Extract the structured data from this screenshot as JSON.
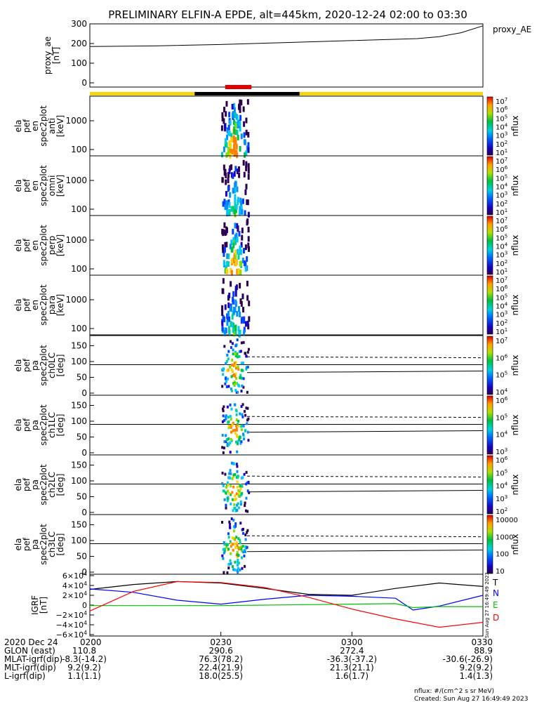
{
  "title": "PRELIMINARY ELFIN-A EPDE, alt=445km, 2020-12-24 02:00 to 03:30",
  "footer": {
    "units": "nflux: #/(cm^2 s sr MeV)",
    "created": "Created: Sun Aug 27 16:49:49 2023",
    "side_stamp": "Sun Aug 27 16:49:49 2023"
  },
  "time_axis": {
    "ticks": [
      "0200",
      "0230",
      "0300",
      "0330"
    ],
    "rows": [
      {
        "label": "2020 Dec 24",
        "values": [
          "0200",
          "0230",
          "0300",
          "0330"
        ]
      },
      {
        "label": "GLON (east)",
        "values": [
          "110.8",
          "290.6",
          "272.4",
          "88.9"
        ]
      },
      {
        "label": "MLAT-igrf(dip)",
        "values": [
          "-8.3(-14.2)",
          "76.3(78.2)",
          "-36.3(-37.2)",
          "-30.6(-26.9)"
        ]
      },
      {
        "label": "MLT-igrf(dip)",
        "values": [
          "9.2(9.2)",
          "22.4(21.9)",
          "21.3(21.1)",
          "9.2(9.2)"
        ]
      },
      {
        "label": "L-igrf(dip)",
        "values": [
          "1.1(1.1)",
          "18.0(25.5)",
          "1.6(1.7)",
          "1.4(1.3)"
        ]
      }
    ]
  },
  "colors": {
    "orbit_yellow": "#f4d40a",
    "orbit_black": "#000000",
    "science_red": "#e00000",
    "igrf_T": "#000000",
    "igrf_N": "#0000ff",
    "igrf_E": "#00c000",
    "igrf_D": "#ff0000"
  },
  "chart_data": [
    {
      "type": "line",
      "name": "proxy_ae_panel",
      "ylabel": [
        "proxy_ae",
        "[nT]"
      ],
      "legend": [
        "proxy_AE"
      ],
      "ylim": [
        0,
        300
      ],
      "yticks": [
        "300",
        "200",
        "100",
        "0"
      ],
      "series": [
        {
          "name": "proxy_AE",
          "x": [
            "0200",
            "0215",
            "0230",
            "0245",
            "0300",
            "0315",
            "0320",
            "0325",
            "0330"
          ],
          "values": [
            185,
            188,
            195,
            205,
            215,
            225,
            235,
            255,
            290
          ]
        }
      ]
    },
    {
      "type": "heatmap",
      "name": "en_spec_anti",
      "ylabel": [
        "ela",
        "pef",
        "en",
        "spec2plot",
        "anti",
        "[keV]"
      ],
      "yticks": [
        "1000",
        "100"
      ],
      "colorbar": {
        "label": "nflux",
        "ticks": [
          "10^7",
          "10^6",
          "10^5",
          "10^4",
          "10^3",
          "10^2",
          "10^1"
        ]
      },
      "active_interval": [
        "0231",
        "0235"
      ]
    },
    {
      "type": "heatmap",
      "name": "en_spec_omni",
      "ylabel": [
        "ela",
        "pef",
        "en",
        "spec2plot",
        "omni",
        "[keV]"
      ],
      "yticks": [
        "1000",
        "100"
      ],
      "colorbar": {
        "label": "nflux",
        "ticks": [
          "10^7",
          "10^6",
          "10^5",
          "10^4",
          "10^3",
          "10^2",
          "10^1"
        ]
      },
      "active_interval": [
        "0231",
        "0235"
      ]
    },
    {
      "type": "heatmap",
      "name": "en_spec_perp",
      "ylabel": [
        "ela",
        "pef",
        "en",
        "spec2plot",
        "perp",
        "[keV]"
      ],
      "yticks": [
        "1000",
        "100"
      ],
      "colorbar": {
        "label": "nflux",
        "ticks": [
          "10^7",
          "10^6",
          "10^5",
          "10^4",
          "10^3",
          "10^2",
          "10^1"
        ]
      },
      "active_interval": [
        "0231",
        "0235"
      ]
    },
    {
      "type": "heatmap",
      "name": "en_spec_para",
      "ylabel": [
        "ela",
        "pef",
        "en",
        "spec2plot",
        "para",
        "[keV]"
      ],
      "yticks": [
        "1000",
        "100"
      ],
      "colorbar": {
        "label": "nflux",
        "ticks": [
          "10^7",
          "10^6",
          "10^5",
          "10^4",
          "10^3",
          "10^2",
          "10^1"
        ]
      },
      "active_interval": [
        "0231",
        "0235"
      ]
    },
    {
      "type": "heatmap",
      "name": "pa_spec_ch0",
      "ylabel": [
        "ela",
        "pef",
        "pa",
        "spec2plot",
        "ch0LC",
        "[deg]"
      ],
      "yticks": [
        "150",
        "100",
        "50",
        "0"
      ],
      "colorbar": {
        "label": "nflux",
        "ticks": [
          "10^7",
          "10^6",
          "10^5",
          "10^4"
        ]
      },
      "active_interval": [
        "0231",
        "0235"
      ]
    },
    {
      "type": "heatmap",
      "name": "pa_spec_ch1",
      "ylabel": [
        "ela",
        "pef",
        "pa",
        "spec2plot",
        "ch1LC",
        "[deg]"
      ],
      "yticks": [
        "150",
        "100",
        "50",
        "0"
      ],
      "colorbar": {
        "label": "nflux",
        "ticks": [
          "10^6",
          "10^5",
          "10^4",
          "10^3"
        ]
      },
      "active_interval": [
        "0231",
        "0235"
      ]
    },
    {
      "type": "heatmap",
      "name": "pa_spec_ch2",
      "ylabel": [
        "ela",
        "pef",
        "pa",
        "spec2plot",
        "ch2LC",
        "[deg]"
      ],
      "yticks": [
        "150",
        "100",
        "50",
        "0"
      ],
      "colorbar": {
        "label": "nflux",
        "ticks": [
          "10^6",
          "10^5",
          "10^4",
          "10^3",
          "10^2"
        ]
      },
      "active_interval": [
        "0231",
        "0235"
      ]
    },
    {
      "type": "heatmap",
      "name": "pa_spec_ch3",
      "ylabel": [
        "ela",
        "pef",
        "pa",
        "spec2plot",
        "ch3LC",
        "[deg]"
      ],
      "yticks": [
        "150",
        "100",
        "50",
        "0"
      ],
      "colorbar": {
        "label": "nflux",
        "ticks": [
          "10000",
          "1000",
          "100",
          "10"
        ]
      },
      "active_interval": [
        "0231",
        "0235"
      ]
    },
    {
      "type": "line",
      "name": "igrf",
      "ylabel": [
        "IGRF",
        "[nT]"
      ],
      "yticks": [
        "6×10^4",
        "4×10^4",
        "2×10^4",
        "0",
        "−2×10^4",
        "−4×10^4",
        "−6×10^4"
      ],
      "ylim": [
        -60000,
        60000
      ],
      "legend": [
        "T",
        "N",
        "E",
        "D"
      ],
      "series": [
        {
          "name": "T",
          "x": [
            "0200",
            "0210",
            "0220",
            "0230",
            "0240",
            "0250",
            "0300",
            "0310",
            "0320",
            "0330"
          ],
          "values": [
            32000,
            42000,
            48000,
            45000,
            34000,
            22000,
            20000,
            34000,
            45000,
            38000
          ]
        },
        {
          "name": "N",
          "x": [
            "0200",
            "0210",
            "0220",
            "0230",
            "0240",
            "0250",
            "0300",
            "0310",
            "0314",
            "0320",
            "0330"
          ],
          "values": [
            33000,
            26000,
            10000,
            2000,
            12000,
            20000,
            18000,
            14000,
            -10000,
            -2000,
            20000
          ]
        },
        {
          "name": "E",
          "x": [
            "0200",
            "0210",
            "0220",
            "0230",
            "0240",
            "0250",
            "0300",
            "0310",
            "0314",
            "0320",
            "0330"
          ],
          "values": [
            -1000,
            -1000,
            -1000,
            -1000,
            0,
            1000,
            2000,
            3000,
            -5000,
            -3000,
            -3000
          ]
        },
        {
          "name": "D",
          "x": [
            "0200",
            "0210",
            "0220",
            "0230",
            "0240",
            "0250",
            "0300",
            "0310",
            "0320",
            "0330"
          ],
          "values": [
            -12000,
            28000,
            48000,
            46000,
            36000,
            16000,
            -8000,
            -28000,
            -45000,
            -35000
          ]
        }
      ]
    }
  ]
}
